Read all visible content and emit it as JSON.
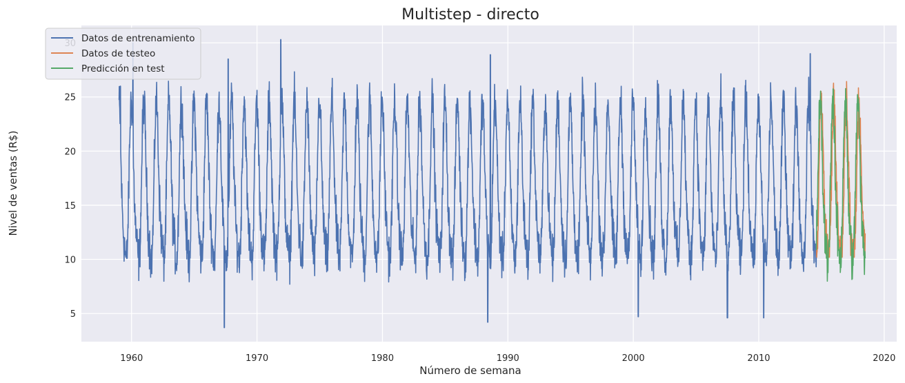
{
  "chart_data": {
    "type": "line",
    "title": "Multistep - directo",
    "xlabel": "Número de semana",
    "ylabel": "Nivel de ventas (R$)",
    "xlim": [
      1956,
      2021
    ],
    "ylim": [
      2.4,
      31.6
    ],
    "xticks": [
      1960,
      1970,
      1980,
      1990,
      2000,
      2010,
      2020
    ],
    "yticks": [
      5,
      10,
      15,
      20,
      25,
      30
    ],
    "grid": true,
    "legend_position": "top-left",
    "series": [
      {
        "name": "Datos de entrenamiento",
        "color": "#4c72b0",
        "x_range": [
          1959.0,
          2014.6
        ],
        "approx_min": 3.7,
        "approx_max": 30.3,
        "peaks": [
          [
            1959.1,
            26.0
          ],
          [
            1960.1,
            30.0
          ],
          [
            1967.7,
            28.5
          ],
          [
            1971.9,
            30.3
          ],
          [
            1988.6,
            28.9
          ],
          [
            2014.1,
            29.0
          ]
        ],
        "troughs": [
          [
            1967.4,
            3.7
          ],
          [
            1988.4,
            4.2
          ],
          [
            2000.4,
            4.7
          ],
          [
            2007.5,
            4.6
          ],
          [
            2010.4,
            4.6
          ]
        ]
      },
      {
        "name": "Datos de testeo",
        "color": "#dd8452",
        "x_range": [
          2014.6,
          2018.5
        ],
        "approx_min": 10.2,
        "approx_max": 28.2
      },
      {
        "name": "Predicción en test",
        "color": "#55a868",
        "x_range": [
          2014.6,
          2018.5
        ],
        "approx_min": 3.7,
        "approx_max": 25.9
      }
    ]
  }
}
